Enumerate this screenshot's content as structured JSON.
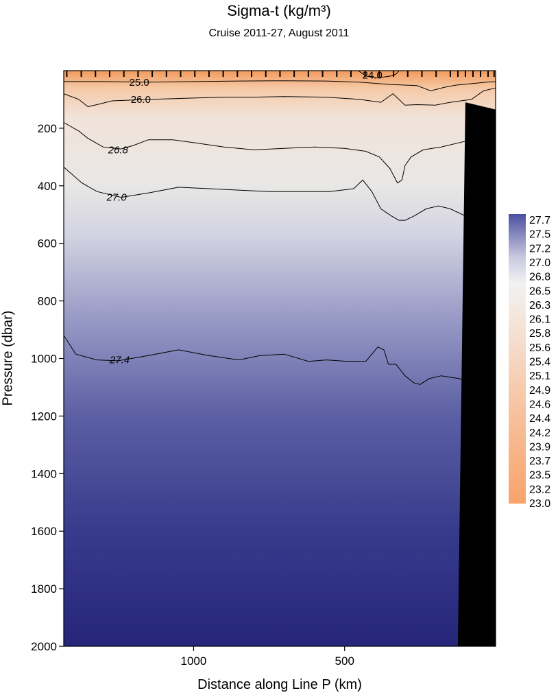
{
  "colors": {
    "deep": "#25267a",
    "mid": "#5b5fa3",
    "light": "#e8e7e5",
    "warm": "#f5c9a6",
    "surface": "#f39a5c",
    "terrain": "#000000"
  },
  "chart_data": {
    "type": "heatmap",
    "title": "Sigma-t  (kg/m³)",
    "subtitle": "Cruise 2011-27,  August 2011",
    "xlabel": "Distance along Line P  (km)",
    "ylabel": "Pressure  (dbar)",
    "x_reversed": true,
    "xlim": [
      1430,
      0
    ],
    "ylim": [
      2000,
      0
    ],
    "x_ticks": [
      "1000",
      "500"
    ],
    "y_ticks": [
      "200",
      "400",
      "600",
      "800",
      "1000",
      "1200",
      "1400",
      "1600",
      "1800",
      "2000"
    ],
    "colorbar_labels": [
      "27.7",
      "27.5",
      "27.2",
      "27.0",
      "26.8",
      "26.5",
      "26.3",
      "26.1",
      "25.8",
      "25.6",
      "25.4",
      "25.1",
      "24.9",
      "24.6",
      "24.4",
      "24.2",
      "23.9",
      "23.7",
      "23.5",
      "23.2",
      "23.0"
    ],
    "station_distances": [
      1420,
      1372,
      1325,
      1278,
      1231,
      1184,
      1137,
      1090,
      1043,
      996,
      949,
      902,
      855,
      808,
      761,
      714,
      667,
      620,
      573,
      526,
      479,
      432,
      385,
      338,
      291,
      244,
      197,
      150,
      125,
      100,
      75,
      50,
      25,
      5
    ],
    "contours": [
      {
        "label": "24.0",
        "points": [
          [
            455,
            0
          ],
          [
            430,
            18
          ],
          [
            400,
            25
          ],
          [
            370,
            22
          ],
          [
            345,
            18
          ],
          [
            330,
            12
          ],
          [
            320,
            0
          ]
        ]
      },
      {
        "label": "25.0",
        "points": [
          [
            1430,
            38
          ],
          [
            1300,
            38
          ],
          [
            1150,
            40
          ],
          [
            1000,
            38
          ],
          [
            850,
            36
          ],
          [
            700,
            35
          ],
          [
            560,
            36
          ],
          [
            450,
            40
          ],
          [
            350,
            48
          ],
          [
            260,
            52
          ],
          [
            215,
            70
          ],
          [
            170,
            58
          ],
          [
            130,
            50
          ],
          [
            80,
            45
          ],
          [
            30,
            40
          ],
          [
            0,
            38
          ]
        ]
      },
      {
        "label": "26.0",
        "points": [
          [
            1430,
            80
          ],
          [
            1380,
            100
          ],
          [
            1350,
            125
          ],
          [
            1320,
            118
          ],
          [
            1270,
            105
          ],
          [
            1150,
            100
          ],
          [
            1000,
            95
          ],
          [
            900,
            92
          ],
          [
            800,
            92
          ],
          [
            700,
            90
          ],
          [
            560,
            92
          ],
          [
            450,
            100
          ],
          [
            380,
            110
          ],
          [
            360,
            95
          ],
          [
            340,
            80
          ],
          [
            320,
            100
          ],
          [
            300,
            120
          ],
          [
            260,
            118
          ],
          [
            200,
            120
          ],
          [
            150,
            110
          ],
          [
            80,
            100
          ],
          [
            40,
            70
          ],
          [
            0,
            60
          ]
        ]
      },
      {
        "label": "26.8",
        "points": [
          [
            1430,
            180
          ],
          [
            1380,
            210
          ],
          [
            1350,
            235
          ],
          [
            1300,
            265
          ],
          [
            1240,
            272
          ],
          [
            1200,
            260
          ],
          [
            1150,
            240
          ],
          [
            1070,
            240
          ],
          [
            1000,
            250
          ],
          [
            900,
            265
          ],
          [
            800,
            275
          ],
          [
            700,
            270
          ],
          [
            600,
            265
          ],
          [
            500,
            270
          ],
          [
            430,
            280
          ],
          [
            385,
            300
          ],
          [
            350,
            340
          ],
          [
            325,
            390
          ],
          [
            310,
            380
          ],
          [
            300,
            330
          ],
          [
            280,
            300
          ],
          [
            240,
            275
          ],
          [
            180,
            265
          ],
          [
            100,
            245
          ],
          [
            50,
            210
          ],
          [
            10,
            150
          ]
        ]
      },
      {
        "label": "27.0",
        "points": [
          [
            1430,
            335
          ],
          [
            1370,
            390
          ],
          [
            1320,
            420
          ],
          [
            1240,
            440
          ],
          [
            1150,
            425
          ],
          [
            1050,
            405
          ],
          [
            950,
            410
          ],
          [
            850,
            415
          ],
          [
            750,
            420
          ],
          [
            650,
            420
          ],
          [
            550,
            420
          ],
          [
            470,
            410
          ],
          [
            440,
            380
          ],
          [
            410,
            420
          ],
          [
            380,
            480
          ],
          [
            345,
            505
          ],
          [
            320,
            520
          ],
          [
            300,
            520
          ],
          [
            270,
            505
          ],
          [
            230,
            480
          ],
          [
            190,
            470
          ],
          [
            150,
            480
          ],
          [
            100,
            505
          ],
          [
            60,
            545
          ],
          [
            40,
            600
          ]
        ]
      },
      {
        "label": "27.4",
        "points": [
          [
            1430,
            920
          ],
          [
            1390,
            985
          ],
          [
            1320,
            1005
          ],
          [
            1250,
            1008
          ],
          [
            1150,
            990
          ],
          [
            1050,
            970
          ],
          [
            950,
            990
          ],
          [
            850,
            1005
          ],
          [
            780,
            990
          ],
          [
            700,
            985
          ],
          [
            620,
            1010
          ],
          [
            560,
            1005
          ],
          [
            490,
            1010
          ],
          [
            430,
            1010
          ],
          [
            390,
            960
          ],
          [
            370,
            970
          ],
          [
            355,
            1020
          ],
          [
            330,
            1020
          ],
          [
            300,
            1060
          ],
          [
            270,
            1085
          ],
          [
            250,
            1090
          ],
          [
            220,
            1070
          ],
          [
            180,
            1060
          ],
          [
            120,
            1070
          ],
          [
            80,
            1090
          ]
        ]
      }
    ],
    "contour_labels": [
      {
        "text": "24.0",
        "at": [
          408,
          16
        ]
      },
      {
        "text": "25.0",
        "at": [
          1180,
          40
        ]
      },
      {
        "text": "26.0",
        "at": [
          1175,
          100
        ]
      },
      {
        "text": "26.8",
        "at": [
          1250,
          275
        ]
      },
      {
        "text": "27.0",
        "at": [
          1255,
          440
        ]
      },
      {
        "text": "27.4",
        "at": [
          1245,
          1005
        ]
      }
    ],
    "seafloor": [
      [
        100,
        110
      ],
      [
        0,
        135
      ],
      [
        0,
        2000
      ],
      [
        125,
        2000
      ]
    ]
  }
}
